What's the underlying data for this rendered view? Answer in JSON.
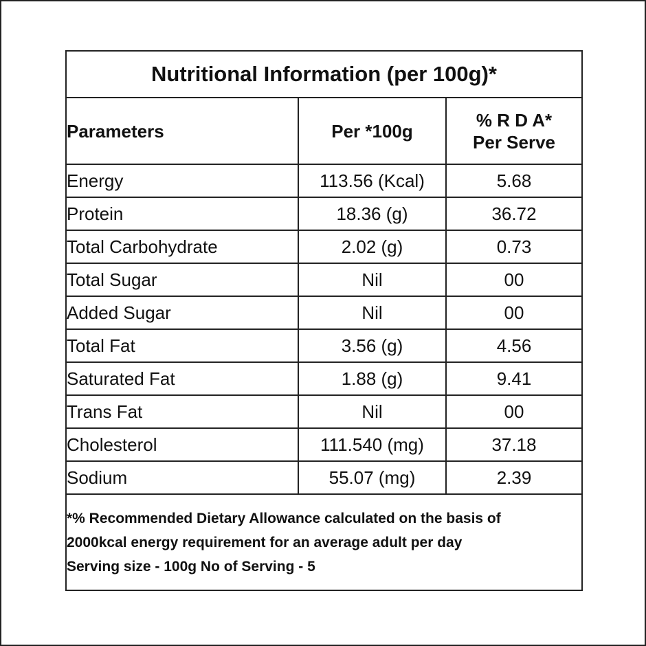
{
  "table": {
    "title": "Nutritional Information (per 100g)*",
    "headers": [
      [
        "Parameters"
      ],
      [
        "Per *100g"
      ],
      [
        "% R D A*",
        "Per Serve"
      ]
    ],
    "rows": [
      [
        "Energy",
        "113.56 (Kcal)",
        "5.68"
      ],
      [
        "Protein",
        "18.36 (g)",
        "36.72"
      ],
      [
        "Total Carbohydrate",
        "2.02 (g)",
        "0.73"
      ],
      [
        "Total Sugar",
        "Nil",
        "00"
      ],
      [
        "Added Sugar",
        "Nil",
        "00"
      ],
      [
        "Total Fat",
        "3.56 (g)",
        "4.56"
      ],
      [
        "Saturated Fat",
        "1.88 (g)",
        "9.41"
      ],
      [
        "Trans Fat",
        "Nil",
        "00"
      ],
      [
        "Cholesterol",
        "111.540 (mg)",
        "37.18"
      ],
      [
        "Sodium",
        "55.07 (mg)",
        "2.39"
      ]
    ],
    "footnote": [
      "*% Recommended Dietary Allowance calculated on the basis of",
      "2000kcal energy requirement for an average adult per day",
      "Serving size - 100g No of Serving - 5"
    ]
  }
}
